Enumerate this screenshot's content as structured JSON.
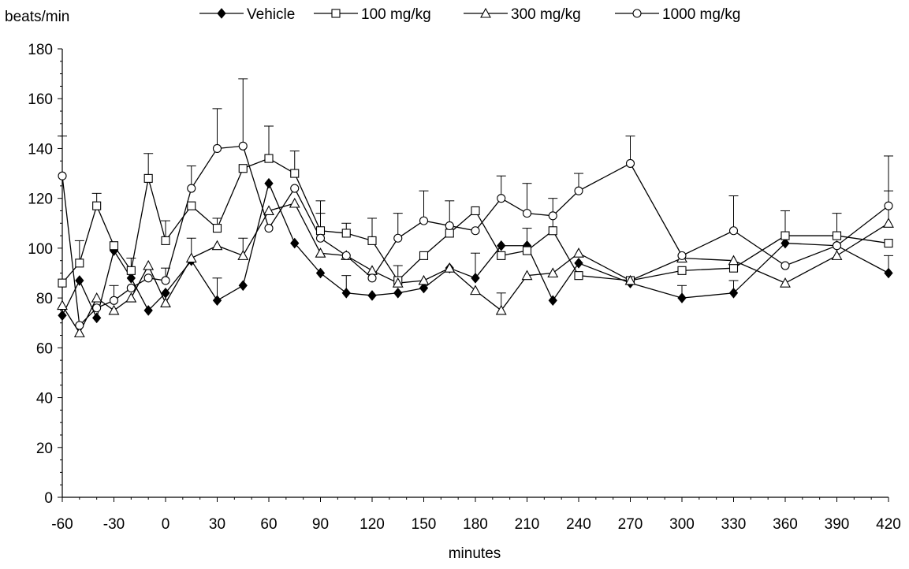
{
  "chart_data": {
    "type": "line",
    "ylabel": "beats/min",
    "xlabel": "minutes",
    "ylim": [
      0,
      180
    ],
    "yticks": [
      0,
      20,
      40,
      60,
      80,
      100,
      120,
      140,
      160,
      180
    ],
    "xlim": [
      -60,
      420
    ],
    "xticks": [
      -60,
      -30,
      0,
      30,
      60,
      90,
      120,
      150,
      180,
      210,
      240,
      270,
      300,
      330,
      360,
      390,
      420
    ],
    "x": [
      -60,
      -50,
      -40,
      -30,
      -20,
      -10,
      0,
      15,
      30,
      45,
      60,
      75,
      90,
      105,
      120,
      135,
      150,
      165,
      180,
      195,
      210,
      225,
      240,
      270,
      300,
      330,
      360,
      390,
      420
    ],
    "grid": false,
    "legend_position": "top",
    "series": [
      {
        "name": "Vehicle",
        "marker": "diamond-filled",
        "x": [
          -60,
          -50,
          -40,
          -30,
          -20,
          -10,
          0,
          15,
          30,
          45,
          60,
          75,
          90,
          105,
          120,
          135,
          150,
          165,
          180,
          195,
          210,
          225,
          240,
          270,
          300,
          330,
          360,
          390,
          420
        ],
        "values": [
          73,
          87,
          72,
          99,
          88,
          75,
          82,
          95,
          79,
          85,
          126,
          102,
          90,
          82,
          81,
          82,
          84,
          92,
          88,
          101,
          101,
          79,
          94,
          86,
          80,
          82,
          102,
          101,
          90
        ],
        "error": [
          0,
          0,
          0,
          0,
          0,
          0,
          0,
          0,
          9,
          0,
          0,
          0,
          0,
          7,
          0,
          0,
          0,
          0,
          10,
          0,
          7,
          0,
          0,
          0,
          5,
          5,
          0,
          0,
          7
        ]
      },
      {
        "name": "100 mg/kg",
        "marker": "square-open",
        "x": [
          -60,
          -50,
          -40,
          -30,
          -20,
          -10,
          0,
          15,
          30,
          45,
          60,
          75,
          90,
          105,
          120,
          135,
          150,
          165,
          180,
          195,
          210,
          225,
          240,
          270,
          300,
          330,
          360,
          390,
          420
        ],
        "values": [
          86,
          94,
          117,
          101,
          91,
          128,
          103,
          117,
          108,
          132,
          136,
          130,
          107,
          106,
          103,
          87,
          97,
          106,
          115,
          97,
          99,
          107,
          89,
          87,
          91,
          92,
          105,
          105,
          102
        ],
        "error": [
          0,
          9,
          5,
          0,
          5,
          10,
          8,
          0,
          4,
          0,
          13,
          9,
          12,
          4,
          9,
          6,
          0,
          0,
          0,
          0,
          0,
          13,
          0,
          0,
          0,
          0,
          10,
          9,
          0
        ]
      },
      {
        "name": "300 mg/kg",
        "marker": "triangle-open",
        "x": [
          -60,
          -50,
          -40,
          -30,
          -20,
          -10,
          0,
          15,
          30,
          45,
          60,
          75,
          90,
          105,
          120,
          135,
          150,
          165,
          180,
          195,
          210,
          225,
          240,
          270,
          300,
          330,
          360,
          390,
          420
        ],
        "values": [
          77,
          66,
          80,
          75,
          80,
          93,
          78,
          96,
          101,
          97,
          115,
          118,
          98,
          97,
          91,
          86,
          87,
          92,
          83,
          75,
          89,
          90,
          98,
          87,
          96,
          95,
          86,
          97,
          110
        ],
        "error": [
          0,
          0,
          0,
          0,
          0,
          0,
          0,
          8,
          0,
          7,
          0,
          0,
          0,
          0,
          0,
          0,
          0,
          0,
          0,
          7,
          0,
          0,
          0,
          0,
          0,
          0,
          0,
          0,
          13
        ]
      },
      {
        "name": "1000 mg/kg",
        "marker": "circle-open",
        "x": [
          -60,
          -50,
          -40,
          -30,
          -20,
          -10,
          0,
          15,
          30,
          45,
          60,
          75,
          90,
          105,
          120,
          135,
          150,
          165,
          180,
          195,
          210,
          225,
          240,
          270,
          300,
          330,
          360,
          390,
          420
        ],
        "values": [
          129,
          69,
          76,
          79,
          84,
          88,
          87,
          124,
          140,
          141,
          108,
          124,
          104,
          97,
          88,
          104,
          111,
          109,
          107,
          120,
          114,
          113,
          123,
          134,
          97,
          107,
          93,
          101,
          117
        ],
        "error": [
          16,
          0,
          0,
          6,
          0,
          0,
          5,
          9,
          16,
          27,
          0,
          0,
          10,
          0,
          0,
          10,
          12,
          10,
          0,
          9,
          12,
          0,
          7,
          11,
          0,
          14,
          0,
          0,
          20
        ]
      }
    ]
  }
}
